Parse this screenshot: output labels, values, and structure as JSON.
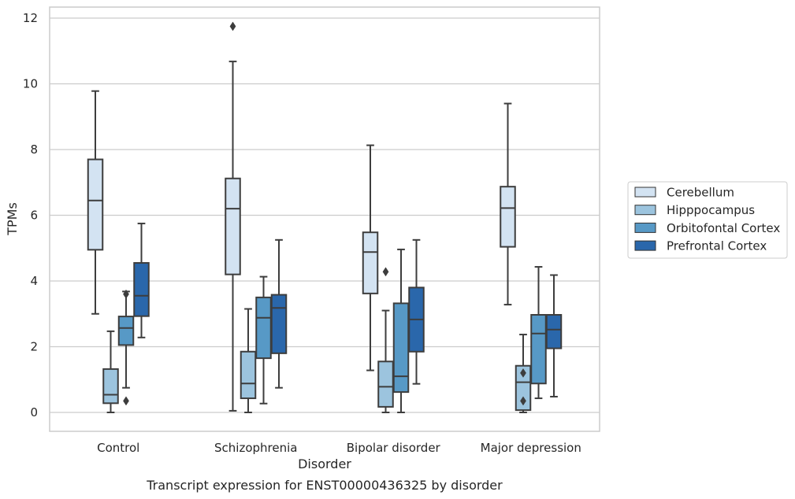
{
  "chart_data": {
    "type": "box",
    "title": "Transcript expression for ENST00000436325 by disorder",
    "xlabel": "Disorder",
    "ylabel": "TPMs",
    "ylim": [
      -0.55,
      12.35
    ],
    "yticks": [
      "0",
      "2",
      "4",
      "6",
      "8",
      "10",
      "12"
    ],
    "grid": true,
    "legend_position": "right",
    "categories": [
      "Control",
      "Schizophrenia",
      "Bipolar disorder",
      "Major depression"
    ],
    "series": [
      {
        "name": "Cerebellum",
        "color": "#d3e3f2",
        "boxes": [
          {
            "whisker_low": 3.0,
            "q1": 4.95,
            "median": 6.45,
            "q3": 7.7,
            "whisker_high": 9.78,
            "outliers": []
          },
          {
            "whisker_low": 0.05,
            "q1": 4.2,
            "median": 6.2,
            "q3": 7.12,
            "whisker_high": 10.68,
            "outliers": [
              11.75
            ]
          },
          {
            "whisker_low": 1.28,
            "q1": 3.62,
            "median": 4.88,
            "q3": 5.48,
            "whisker_high": 8.13,
            "outliers": []
          },
          {
            "whisker_low": 3.28,
            "q1": 5.04,
            "median": 6.22,
            "q3": 6.87,
            "whisker_high": 9.4,
            "outliers": []
          }
        ]
      },
      {
        "name": "Hipppocampus",
        "color": "#9cc4de",
        "boxes": [
          {
            "whisker_low": 0.0,
            "q1": 0.28,
            "median": 0.54,
            "q3": 1.32,
            "whisker_high": 2.47,
            "outliers": []
          },
          {
            "whisker_low": 0.0,
            "q1": 0.43,
            "median": 0.88,
            "q3": 1.85,
            "whisker_high": 3.15,
            "outliers": []
          },
          {
            "whisker_low": 0.0,
            "q1": 0.17,
            "median": 0.78,
            "q3": 1.55,
            "whisker_high": 3.1,
            "outliers": [
              4.28
            ]
          },
          {
            "whisker_low": 0.0,
            "q1": 0.07,
            "median": 0.92,
            "q3": 1.42,
            "whisker_high": 2.37,
            "outliers": [
              1.2,
              0.35
            ]
          }
        ]
      },
      {
        "name": "Orbitofontal Cortex",
        "color": "#5799c6",
        "boxes": [
          {
            "whisker_low": 0.75,
            "q1": 2.05,
            "median": 2.57,
            "q3": 2.92,
            "whisker_high": 3.68,
            "outliers": [
              3.6,
              0.35
            ]
          },
          {
            "whisker_low": 0.27,
            "q1": 1.65,
            "median": 2.88,
            "q3": 3.5,
            "whisker_high": 4.13,
            "outliers": []
          },
          {
            "whisker_low": 0.0,
            "q1": 0.62,
            "median": 1.1,
            "q3": 3.32,
            "whisker_high": 4.96,
            "outliers": []
          },
          {
            "whisker_low": 0.43,
            "q1": 0.88,
            "median": 2.4,
            "q3": 2.97,
            "whisker_high": 4.43,
            "outliers": []
          }
        ]
      },
      {
        "name": "Prefrontal Cortex",
        "color": "#2a67ab",
        "boxes": [
          {
            "whisker_low": 2.28,
            "q1": 2.93,
            "median": 3.55,
            "q3": 4.55,
            "whisker_high": 5.75,
            "outliers": []
          },
          {
            "whisker_low": 0.75,
            "q1": 1.8,
            "median": 3.18,
            "q3": 3.58,
            "whisker_high": 5.25,
            "outliers": []
          },
          {
            "whisker_low": 0.87,
            "q1": 1.85,
            "median": 2.83,
            "q3": 3.8,
            "whisker_high": 5.25,
            "outliers": []
          },
          {
            "whisker_low": 0.48,
            "q1": 1.95,
            "median": 2.52,
            "q3": 2.97,
            "whisker_high": 4.18,
            "outliers": []
          }
        ]
      }
    ]
  }
}
